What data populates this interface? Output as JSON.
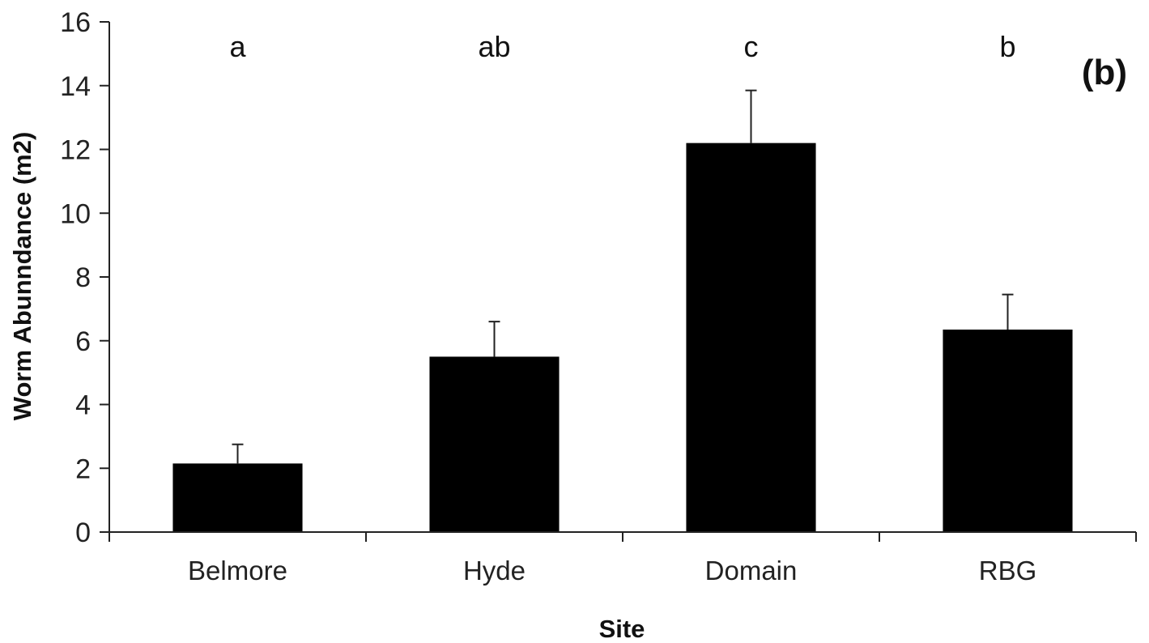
{
  "chart_data": {
    "type": "bar",
    "panel_label": "(b)",
    "title": "",
    "xlabel": "Site",
    "ylabel": "Worm Abunndance (m2)",
    "categories": [
      "Belmore",
      "Hyde",
      "Domain",
      "RBG"
    ],
    "values": [
      2.15,
      5.5,
      12.2,
      6.35
    ],
    "error_upper": [
      2.75,
      6.6,
      13.85,
      7.45
    ],
    "significance_letters": [
      "a",
      "ab",
      "c",
      "b"
    ],
    "ylim": [
      0,
      16
    ],
    "yticks": [
      "0",
      "2",
      "4",
      "6",
      "8",
      "10",
      "12",
      "14",
      "16"
    ],
    "bar_color": "#000000",
    "grid": false,
    "legend": "none"
  }
}
